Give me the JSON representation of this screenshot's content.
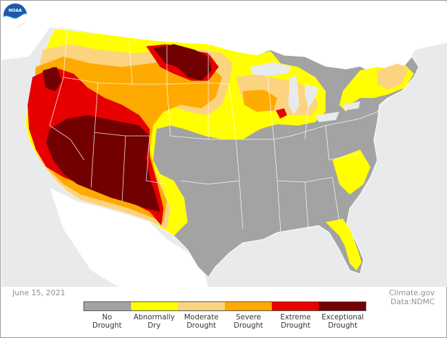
{
  "map": {
    "date": "June 15, 2021",
    "credit_line1": "Climate.gov",
    "credit_line2": "Data:NDMC",
    "logo_text": "NOAA"
  },
  "legend": {
    "items": [
      {
        "line1": "No",
        "line2": "Drought",
        "color": "#a3a3a3"
      },
      {
        "line1": "Abnormally",
        "line2": "Dry",
        "color": "#ffff00"
      },
      {
        "line1": "Moderate",
        "line2": "Drought",
        "color": "#fcd37f"
      },
      {
        "line1": "Severe",
        "line2": "Drought",
        "color": "#ffaa00"
      },
      {
        "line1": "Extreme",
        "line2": "Drought",
        "color": "#e60000"
      },
      {
        "line1": "Exceptional",
        "line2": "Drought",
        "color": "#730000"
      }
    ]
  },
  "colors": {
    "background": "#e9eaeb",
    "land_outside": "#ffffff",
    "state_border": "#ffffff"
  }
}
